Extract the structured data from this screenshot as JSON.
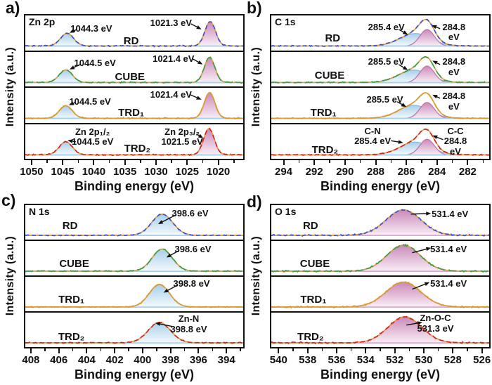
{
  "figure": {
    "description": "XPS spectra of ZIF-8 crystals with different morphologies",
    "samples": [
      "RD",
      "CUBE",
      "TRD₁",
      "TRD₂"
    ]
  },
  "colors": {
    "frame": "#111111",
    "envelope": "#dd9f46",
    "component_blue_stroke": "#8cbcdf",
    "component_blue_fill_top": "#a9cfeb",
    "component_blue_fill_bottom": "#f4fafd",
    "component_pink_stroke": "#bf77a9",
    "component_pink_fill_top": "#cb89bb",
    "component_pink_fill_bottom": "#f9eff6",
    "baseline_blue": "#a6d0ec",
    "baseline_pink": "#d9a8cf",
    "samples": {
      "RD": "#3a50cc",
      "CUBE": "#3e9b45",
      "TRD1": "#d79a2f",
      "TRD2": "#d2231f"
    }
  },
  "chart_data": [
    {
      "panel": "a",
      "letter": "a)",
      "region": "Zn 2p",
      "type": "line",
      "xlabel": "Binding energy (eV)",
      "ylabel": "Intensity (a.u.)",
      "x_range": [
        1051,
        1016
      ],
      "minor_step": 2.5,
      "baseline": "blue",
      "ticks": [
        1050,
        1045,
        1040,
        1035,
        1030,
        1025,
        1020
      ],
      "tick_labels": [
        "1050",
        "1045",
        "1040",
        "1035",
        "1030",
        "1025",
        "1020"
      ],
      "rows": [
        {
          "sample": "RD",
          "sample_key": "RD",
          "label_x": 1034,
          "label_y": 0.56,
          "peaks": [
            {
              "center": 1044.3,
              "sigma": 1.05,
              "height": 0.44,
              "fill": "blue"
            },
            {
              "center": 1021.3,
              "sigma": 0.85,
              "height": 0.85,
              "fill": "pink"
            }
          ],
          "annotations": [
            {
              "text": "1044.3 eV",
              "x": 1040.4,
              "y": 0.24,
              "arrow": [
                1042.7,
                0.4,
                1043.9,
                0.5
              ]
            },
            {
              "text": "1021.3 eV",
              "x": 1027.6,
              "y": 0.08,
              "arrow": [
                1024.4,
                0.24,
                1022.7,
                0.4
              ]
            }
          ]
        },
        {
          "sample": "CUBE",
          "sample_key": "CUBE",
          "label_x": 1034.2,
          "label_y": 0.56,
          "peaks": [
            {
              "center": 1044.5,
              "sigma": 1.05,
              "height": 0.44,
              "fill": "blue"
            },
            {
              "center": 1021.4,
              "sigma": 0.85,
              "height": 0.88,
              "fill": "pink"
            }
          ],
          "annotations": [
            {
              "text": "1044.5 eV",
              "x": 1039.8,
              "y": 0.2,
              "arrow": [
                1042.2,
                0.36,
                1043.9,
                0.5
              ]
            },
            {
              "text": "1021.4 eV",
              "x": 1027.2,
              "y": 0.06,
              "arrow": [
                1024.1,
                0.2,
                1022.5,
                0.36
              ]
            }
          ]
        },
        {
          "sample": "TRD₁",
          "sample_key": "TRD1",
          "label_x": 1034,
          "label_y": 0.54,
          "peaks": [
            {
              "center": 1044.5,
              "sigma": 1.05,
              "height": 0.44,
              "fill": "blue"
            },
            {
              "center": 1021.4,
              "sigma": 0.85,
              "height": 0.9,
              "fill": "pink"
            }
          ],
          "annotations": [
            {
              "text": "1044.5 eV",
              "x": 1040.6,
              "y": 0.26,
              "arrow": [
                1043.0,
                0.42,
                1044.0,
                0.5
              ]
            },
            {
              "text": "1021.4 eV",
              "x": 1027.6,
              "y": 0.06,
              "arrow": [
                1024.5,
                0.2,
                1022.7,
                0.34
              ]
            }
          ]
        },
        {
          "sample": "TRD₂",
          "sample_key": "TRD2",
          "label_x": 1033,
          "label_y": 0.54,
          "peaks": [
            {
              "center": 1044.5,
              "sigma": 1.05,
              "height": 0.46,
              "fill": "blue"
            },
            {
              "center": 1021.5,
              "sigma": 0.85,
              "height": 0.92,
              "fill": "pink"
            }
          ],
          "annotations": [
            {
              "text": "Zn 2p₁/₂\n1044.5 eV",
              "x": 1040.2,
              "y": 0.08,
              "arrow": [
                1042.9,
                0.5,
                1044.2,
                0.46
              ]
            },
            {
              "text": "Zn 2p₃/₂\n1021.5 eV",
              "x": 1025.8,
              "y": 0.08,
              "arrow": [
                1023.5,
                0.28,
                1022.4,
                0.4
              ]
            }
          ]
        }
      ]
    },
    {
      "panel": "b",
      "letter": "b)",
      "region": "C 1s",
      "type": "line",
      "xlabel": "Binding energy (eV)",
      "ylabel": "Intensity (a.u.)",
      "x_range": [
        294.8,
        280.6
      ],
      "minor_step": 1,
      "baseline": "blue",
      "ticks": [
        294,
        292,
        290,
        288,
        286,
        284,
        282
      ],
      "tick_labels": [
        "294",
        "292",
        "290",
        "288",
        "286",
        "284",
        "282"
      ],
      "rows": [
        {
          "sample": "RD",
          "sample_key": "RD",
          "label_x": 290.8,
          "label_y": 0.48,
          "peaks": [
            {
              "center": 285.4,
              "sigma": 1.0,
              "height": 0.44,
              "fill": "blue"
            },
            {
              "center": 284.65,
              "sigma": 0.47,
              "height": 0.58,
              "fill": "pink"
            }
          ],
          "annotations": [
            {
              "text": "285.4 eV",
              "x": 287.3,
              "y": 0.2,
              "arrow": [
                286.5,
                0.4,
                285.9,
                0.55
              ]
            },
            {
              "text": "284.8 eV",
              "x": 282.9,
              "y": 0.2,
              "arrow": [
                283.8,
                0.38,
                284.35,
                0.28
              ]
            }
          ]
        },
        {
          "sample": "CUBE",
          "sample_key": "CUBE",
          "label_x": 291.0,
          "label_y": 0.52,
          "peaks": [
            {
              "center": 285.5,
              "sigma": 1.0,
              "height": 0.44,
              "fill": "blue"
            },
            {
              "center": 284.65,
              "sigma": 0.47,
              "height": 0.58,
              "fill": "pink"
            }
          ],
          "annotations": [
            {
              "text": "285.5 eV",
              "x": 287.3,
              "y": 0.16,
              "arrow": [
                286.5,
                0.36,
                285.9,
                0.52
              ]
            },
            {
              "text": "284.8 eV",
              "x": 282.9,
              "y": 0.16,
              "arrow": [
                283.8,
                0.36,
                284.3,
                0.25
              ]
            }
          ]
        },
        {
          "sample": "TRD₁",
          "sample_key": "TRD1",
          "label_x": 291.4,
          "label_y": 0.54,
          "peaks": [
            {
              "center": 285.5,
              "sigma": 1.0,
              "height": 0.46,
              "fill": "blue"
            },
            {
              "center": 284.65,
              "sigma": 0.47,
              "height": 0.56,
              "fill": "pink"
            }
          ],
          "annotations": [
            {
              "text": "285.5 eV",
              "x": 287.4,
              "y": 0.2,
              "arrow": [
                286.6,
                0.4,
                286.0,
                0.55
              ]
            },
            {
              "text": "284.8 eV",
              "x": 282.9,
              "y": 0.1,
              "arrow": [
                283.8,
                0.3,
                284.3,
                0.2
              ]
            }
          ]
        },
        {
          "sample": "TRD₂",
          "sample_key": "TRD2",
          "label_x": 291.3,
          "label_y": 0.58,
          "peaks": [
            {
              "center": 285.4,
              "sigma": 1.0,
              "height": 0.45,
              "fill": "blue"
            },
            {
              "center": 284.65,
              "sigma": 0.47,
              "height": 0.55,
              "fill": "pink"
            }
          ],
          "annotations": [
            {
              "text": "C-N\n285.4 eV",
              "x": 288.2,
              "y": 0.06,
              "arrow": [
                287.0,
                0.47,
                286.2,
                0.53
              ]
            },
            {
              "text": "C-C\n284.8 eV",
              "x": 282.8,
              "y": 0.06,
              "arrow": [
                283.6,
                0.44,
                284.3,
                0.32
              ]
            }
          ]
        }
      ]
    },
    {
      "panel": "c",
      "letter": "c)",
      "region": "N 1s",
      "type": "line",
      "xlabel": "Binding energy (eV)",
      "ylabel": "Intensity (a.u.)",
      "x_range": [
        408.4,
        392.8
      ],
      "minor_step": 1,
      "baseline": "blue",
      "ticks": [
        408,
        406,
        404,
        402,
        400,
        398,
        396,
        394
      ],
      "tick_labels": [
        "408",
        "406",
        "404",
        "402",
        "400",
        "398",
        "396",
        "394"
      ],
      "rows": [
        {
          "sample": "RD",
          "sample_key": "RD",
          "label_x": 405.2,
          "label_y": 0.42,
          "peaks": [
            {
              "center": 398.6,
              "sigma": 0.75,
              "height": 0.75,
              "fill": "blue"
            }
          ],
          "annotations": [
            {
              "text": "398.6 eV",
              "x": 396.6,
              "y": 0.1,
              "arrow": [
                397.6,
                0.28,
                398.9,
                0.55
              ]
            }
          ]
        },
        {
          "sample": "CUBE",
          "sample_key": "CUBE",
          "label_x": 404.9,
          "label_y": 0.48,
          "peaks": [
            {
              "center": 398.6,
              "sigma": 0.72,
              "height": 0.78,
              "fill": "blue"
            }
          ],
          "annotations": [
            {
              "text": "398.6 eV",
              "x": 396.4,
              "y": 0.1,
              "arrow": [
                397.4,
                0.28,
                398.3,
                0.48
              ]
            }
          ]
        },
        {
          "sample": "TRD₁",
          "sample_key": "TRD1",
          "label_x": 405.1,
          "label_y": 0.48,
          "peaks": [
            {
              "center": 398.8,
              "sigma": 0.72,
              "height": 0.8,
              "fill": "blue"
            }
          ],
          "annotations": [
            {
              "text": "398.8 eV",
              "x": 396.5,
              "y": 0.06,
              "arrow": [
                397.5,
                0.24,
                398.5,
                0.46
              ]
            }
          ]
        },
        {
          "sample": "TRD₂",
          "sample_key": "TRD2",
          "label_x": 405.1,
          "label_y": 0.52,
          "peaks": [
            {
              "center": 398.8,
              "sigma": 0.8,
              "height": 0.72,
              "fill": "blue"
            }
          ],
          "annotations": [
            {
              "text": "Zn-N\n398.8 eV",
              "x": 396.7,
              "y": 0.04,
              "arrow": [
                397.9,
                0.4,
                399.1,
                0.3
              ]
            }
          ]
        }
      ]
    },
    {
      "panel": "d",
      "letter": "d)",
      "region": "O 1s",
      "type": "line",
      "xlabel": "Binding energy (eV)",
      "ylabel": "Intensity (a.u.)",
      "x_range": [
        540.5,
        525.5
      ],
      "minor_step": 1,
      "baseline": "pink",
      "ticks": [
        540,
        538,
        536,
        534,
        532,
        530,
        528,
        526
      ],
      "tick_labels": [
        "540",
        "538",
        "536",
        "534",
        "532",
        "530",
        "528",
        "526"
      ],
      "rows": [
        {
          "sample": "RD",
          "sample_key": "RD",
          "label_x": 537.8,
          "label_y": 0.42,
          "peaks": [
            {
              "center": 531.4,
              "sigma": 1.2,
              "height": 0.9,
              "fill": "pink"
            }
          ],
          "annotations": [
            {
              "text": "531.4 eV",
              "x": 528.2,
              "y": 0.12,
              "arrow": [
                530.9,
                0.26,
                529.5,
                0.24
              ]
            }
          ]
        },
        {
          "sample": "CUBE",
          "sample_key": "CUBE",
          "label_x": 537.5,
          "label_y": 0.48,
          "peaks": [
            {
              "center": 531.4,
              "sigma": 1.15,
              "height": 0.92,
              "fill": "pink"
            }
          ],
          "annotations": [
            {
              "text": "531.4 eV",
              "x": 528.3,
              "y": 0.1,
              "arrow": [
                530.8,
                0.34,
                529.5,
                0.2
              ]
            }
          ]
        },
        {
          "sample": "TRD₁",
          "sample_key": "TRD1",
          "label_x": 537.6,
          "label_y": 0.48,
          "peaks": [
            {
              "center": 531.4,
              "sigma": 1.2,
              "height": 0.88,
              "fill": "pink"
            }
          ],
          "annotations": [
            {
              "text": "531.4 eV",
              "x": 528.3,
              "y": 0.06,
              "arrow": [
                530.8,
                0.36,
                529.6,
                0.16
              ]
            }
          ]
        },
        {
          "sample": "TRD₂",
          "sample_key": "TRD2",
          "label_x": 537.8,
          "label_y": 0.52,
          "peaks": [
            {
              "center": 531.3,
              "sigma": 1.15,
              "height": 0.92,
              "fill": "pink"
            }
          ],
          "annotations": [
            {
              "text": "Zn-O-C\n531.3 eV",
              "x": 529.2,
              "y": 0.02,
              "arrow": [
                531.2,
                0.36,
                530.1,
                0.28
              ]
            }
          ]
        }
      ]
    }
  ]
}
